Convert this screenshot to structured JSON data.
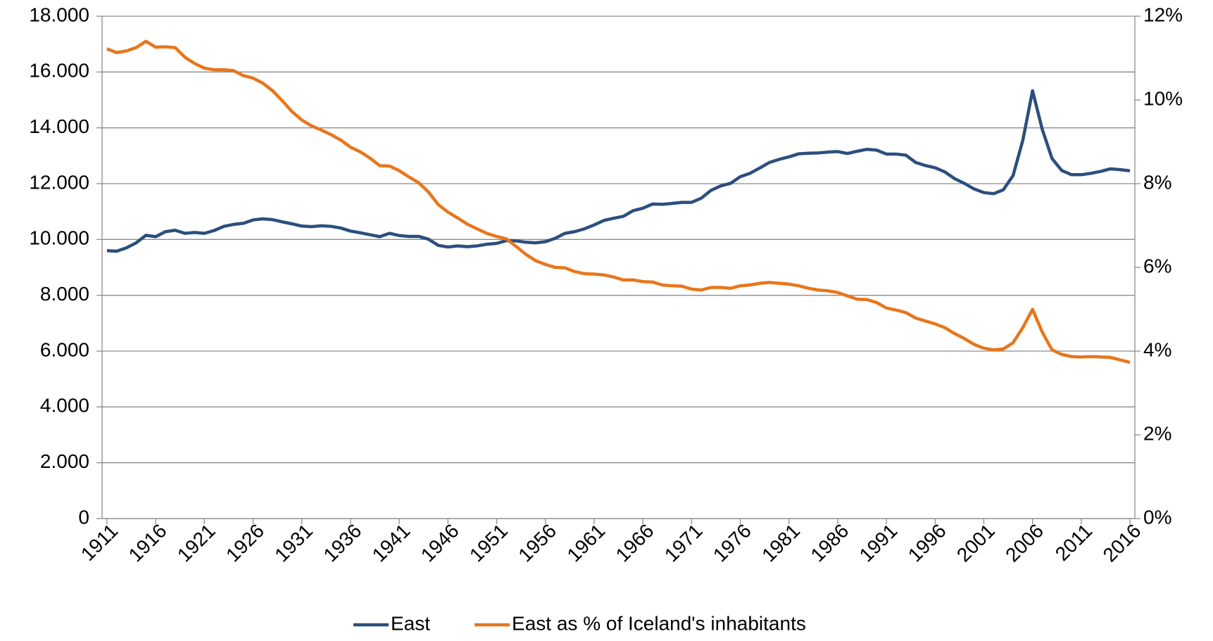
{
  "chart_data": {
    "type": "line",
    "x": [
      1911,
      1912,
      1913,
      1914,
      1915,
      1916,
      1917,
      1918,
      1919,
      1920,
      1921,
      1922,
      1923,
      1924,
      1925,
      1926,
      1927,
      1928,
      1929,
      1930,
      1931,
      1932,
      1933,
      1934,
      1935,
      1936,
      1937,
      1938,
      1939,
      1940,
      1941,
      1942,
      1943,
      1944,
      1945,
      1946,
      1947,
      1948,
      1949,
      1950,
      1951,
      1952,
      1953,
      1954,
      1955,
      1956,
      1957,
      1958,
      1959,
      1960,
      1961,
      1962,
      1963,
      1964,
      1965,
      1966,
      1967,
      1968,
      1969,
      1970,
      1971,
      1972,
      1973,
      1974,
      1975,
      1976,
      1977,
      1978,
      1979,
      1980,
      1981,
      1982,
      1983,
      1984,
      1985,
      1986,
      1987,
      1988,
      1989,
      1990,
      1991,
      1992,
      1993,
      1994,
      1995,
      1996,
      1997,
      1998,
      1999,
      2000,
      2001,
      2002,
      2003,
      2004,
      2005,
      2006,
      2007,
      2008,
      2009,
      2010,
      2011,
      2012,
      2013,
      2014,
      2015,
      2016
    ],
    "xlim": [
      1910.5,
      2016.5
    ],
    "xticks": [
      1911,
      1916,
      1921,
      1926,
      1931,
      1936,
      1941,
      1946,
      1951,
      1956,
      1961,
      1966,
      1971,
      1976,
      1981,
      1986,
      1991,
      1996,
      2001,
      2006,
      2011,
      2016
    ],
    "ylim": [
      0,
      18000
    ],
    "yticks": [
      {
        "value": 0,
        "label": "0"
      },
      {
        "value": 2000,
        "label": "2.000"
      },
      {
        "value": 4000,
        "label": "4.000"
      },
      {
        "value": 6000,
        "label": "6.000"
      },
      {
        "value": 8000,
        "label": "8.000"
      },
      {
        "value": 10000,
        "label": "10.000"
      },
      {
        "value": 12000,
        "label": "12.000"
      },
      {
        "value": 14000,
        "label": "14.000"
      },
      {
        "value": 16000,
        "label": "16.000"
      },
      {
        "value": 18000,
        "label": "18.000"
      }
    ],
    "y2lim": [
      0,
      12
    ],
    "y2ticks": [
      {
        "value": 0,
        "label": "0%"
      },
      {
        "value": 2,
        "label": "2%"
      },
      {
        "value": 4,
        "label": "4%"
      },
      {
        "value": 6,
        "label": "6%"
      },
      {
        "value": 8,
        "label": "8%"
      },
      {
        "value": 10,
        "label": "10%"
      },
      {
        "value": 12,
        "label": "12%"
      }
    ],
    "grid": true,
    "legend": "bottom",
    "series": [
      {
        "name": "East",
        "color": "#2b4f7e",
        "values": [
          9600,
          9580,
          9700,
          9880,
          10150,
          10100,
          10280,
          10330,
          10220,
          10250,
          10220,
          10320,
          10470,
          10540,
          10580,
          10700,
          10740,
          10710,
          10630,
          10560,
          10480,
          10460,
          10490,
          10470,
          10410,
          10300,
          10240,
          10170,
          10100,
          10220,
          10140,
          10110,
          10110,
          10010,
          9790,
          9730,
          9770,
          9740,
          9770,
          9830,
          9860,
          9960,
          9950,
          9900,
          9880,
          9920,
          10040,
          10220,
          10280,
          10380,
          10520,
          10680,
          10760,
          10830,
          11030,
          11120,
          11270,
          11260,
          11290,
          11330,
          11330,
          11480,
          11760,
          11920,
          12010,
          12250,
          12370,
          12560,
          12760,
          12870,
          12960,
          13070,
          13090,
          13100,
          13130,
          13150,
          13080,
          13160,
          13230,
          13200,
          13060,
          13060,
          13020,
          12760,
          12650,
          12570,
          12420,
          12180,
          12010,
          11810,
          11680,
          11640,
          11780,
          12290,
          13550,
          15330,
          13940,
          12900,
          12470,
          12320,
          12320,
          12370,
          12440,
          12530,
          12500,
          12460
        ]
      },
      {
        "name": "East as % of Iceland's inhabitants",
        "color": "#e8761c",
        "axis": "y2",
        "values": [
          11.22,
          11.13,
          11.17,
          11.25,
          11.4,
          11.26,
          11.27,
          11.25,
          11.02,
          10.87,
          10.76,
          10.72,
          10.72,
          10.7,
          10.58,
          10.52,
          10.4,
          10.22,
          9.98,
          9.72,
          9.52,
          9.38,
          9.28,
          9.17,
          9.04,
          8.87,
          8.76,
          8.61,
          8.43,
          8.42,
          8.31,
          8.16,
          8.02,
          7.8,
          7.5,
          7.32,
          7.18,
          7.03,
          6.92,
          6.81,
          6.74,
          6.68,
          6.5,
          6.31,
          6.16,
          6.07,
          6.0,
          5.99,
          5.9,
          5.85,
          5.84,
          5.82,
          5.77,
          5.7,
          5.7,
          5.66,
          5.65,
          5.58,
          5.56,
          5.55,
          5.48,
          5.46,
          5.52,
          5.52,
          5.5,
          5.56,
          5.58,
          5.62,
          5.64,
          5.62,
          5.6,
          5.56,
          5.5,
          5.46,
          5.44,
          5.4,
          5.32,
          5.24,
          5.23,
          5.16,
          5.03,
          4.98,
          4.92,
          4.79,
          4.72,
          4.65,
          4.56,
          4.42,
          4.3,
          4.16,
          4.07,
          4.03,
          4.05,
          4.2,
          4.56,
          5.0,
          4.45,
          4.03,
          3.92,
          3.87,
          3.86,
          3.87,
          3.86,
          3.85,
          3.79,
          3.73
        ]
      }
    ]
  }
}
